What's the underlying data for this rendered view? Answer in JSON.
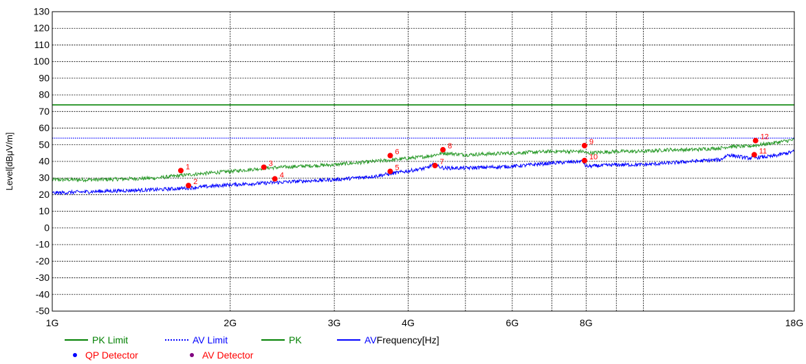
{
  "chart_data": {
    "type": "line",
    "title": "",
    "xlabel": "Frequency[Hz]",
    "ylabel": "Level[dBμV/m]",
    "x_scale": "log",
    "xlim_hz": [
      1000000000,
      18000000000
    ],
    "ylim": [
      -50,
      130
    ],
    "y_ticks": [
      130,
      120,
      110,
      100,
      90,
      80,
      70,
      60,
      50,
      40,
      30,
      20,
      10,
      0,
      -10,
      -20,
      -30,
      -40,
      -50
    ],
    "x_ticks": [
      {
        "label": "1G",
        "hz": 1000000000
      },
      {
        "label": "2G",
        "hz": 2000000000
      },
      {
        "label": "3G",
        "hz": 3000000000
      },
      {
        "label": "4G",
        "hz": 4000000000
      },
      {
        "label": "6G",
        "hz": 6000000000
      },
      {
        "label": "8G",
        "hz": 8000000000
      },
      {
        "label": "18G",
        "hz": 18000000000
      }
    ],
    "x_gridlines_hz": [
      2000000000,
      3000000000,
      4000000000,
      5000000000,
      6000000000,
      7000000000,
      8000000000,
      9000000000,
      10000000000
    ],
    "grid": true,
    "series": [
      {
        "name": "PK Limit",
        "color": "#008000",
        "style": "solid",
        "x_hz": [
          1000000000,
          18000000000
        ],
        "y": [
          74,
          74
        ]
      },
      {
        "name": "AV Limit",
        "color": "#0000ff",
        "style": "dotted",
        "x_hz": [
          1000000000,
          18000000000
        ],
        "y": [
          54,
          54
        ]
      },
      {
        "name": "PK",
        "color": "#2a9a2a",
        "style": "noisy",
        "x_hz": [
          1000000000,
          1200000000,
          1500000000,
          1700000000,
          2000000000,
          2300000000,
          2600000000,
          3000000000,
          3500000000,
          3800000000,
          4300000000,
          4600000000,
          5000000000,
          6000000000,
          7000000000,
          7900000000,
          8000000000,
          9000000000,
          10000000000,
          11000000000,
          12000000000,
          13500000000,
          14000000000,
          15000000000,
          16500000000,
          18000000000
        ],
        "y": [
          29,
          29,
          30,
          32,
          34,
          36,
          37,
          38,
          40,
          41,
          43,
          45,
          44,
          45,
          46,
          46,
          45,
          46,
          46,
          47,
          47,
          48,
          49,
          49,
          51,
          53
        ]
      },
      {
        "name": "AV",
        "color": "#0000ff",
        "style": "noisy",
        "x_hz": [
          1000000000,
          1200000000,
          1500000000,
          1700000000,
          2000000000,
          2300000000,
          2600000000,
          3000000000,
          3500000000,
          3800000000,
          4300000000,
          4400000000,
          4600000000,
          5000000000,
          6000000000,
          7000000000,
          7900000000,
          8000000000,
          9000000000,
          10000000000,
          11000000000,
          12000000000,
          13500000000,
          13900000000,
          15000000000,
          16500000000,
          18000000000
        ],
        "y": [
          21,
          22,
          23,
          24,
          26,
          27,
          28,
          29,
          31,
          33,
          36,
          38,
          36,
          36,
          37,
          39,
          40,
          37,
          38,
          38,
          39,
          40,
          41,
          44,
          42,
          43,
          46
        ]
      }
    ],
    "markers": [
      {
        "label": "1",
        "hz": 1650000000,
        "y": 34.5
      },
      {
        "label": "2",
        "hz": 1700000000,
        "y": 25.5
      },
      {
        "label": "3",
        "hz": 2280000000,
        "y": 36.5
      },
      {
        "label": "4",
        "hz": 2380000000,
        "y": 29.5
      },
      {
        "label": "5",
        "hz": 3730000000,
        "y": 34
      },
      {
        "label": "6",
        "hz": 3730000000,
        "y": 43.5
      },
      {
        "label": "7",
        "hz": 4440000000,
        "y": 37.5
      },
      {
        "label": "8",
        "hz": 4580000000,
        "y": 47
      },
      {
        "label": "9",
        "hz": 7950000000,
        "y": 49.5
      },
      {
        "label": "10",
        "hz": 7950000000,
        "y": 40.5
      },
      {
        "label": "11",
        "hz": 15400000000,
        "y": 44
      },
      {
        "label": "12",
        "hz": 15480000000,
        "y": 52.5
      }
    ],
    "marker_color": "#ff0000",
    "legend": [
      {
        "label": "PK Limit",
        "kind": "line",
        "color": "#008000",
        "style": "solid"
      },
      {
        "label": "AV Limit",
        "kind": "line",
        "color": "#0000ff",
        "style": "dotted"
      },
      {
        "label": "PK",
        "kind": "line",
        "color": "#008000",
        "style": "solid"
      },
      {
        "label": "AV",
        "kind": "line",
        "color": "#0000ff",
        "style": "solid"
      },
      {
        "label": "QP Detector",
        "kind": "dot",
        "color": "#0000ff",
        "text_color": "#ff0000"
      },
      {
        "label": "AV Detector",
        "kind": "dot",
        "color": "#800080",
        "text_color": "#ff0000"
      }
    ],
    "legend_position": "bottom-left"
  }
}
